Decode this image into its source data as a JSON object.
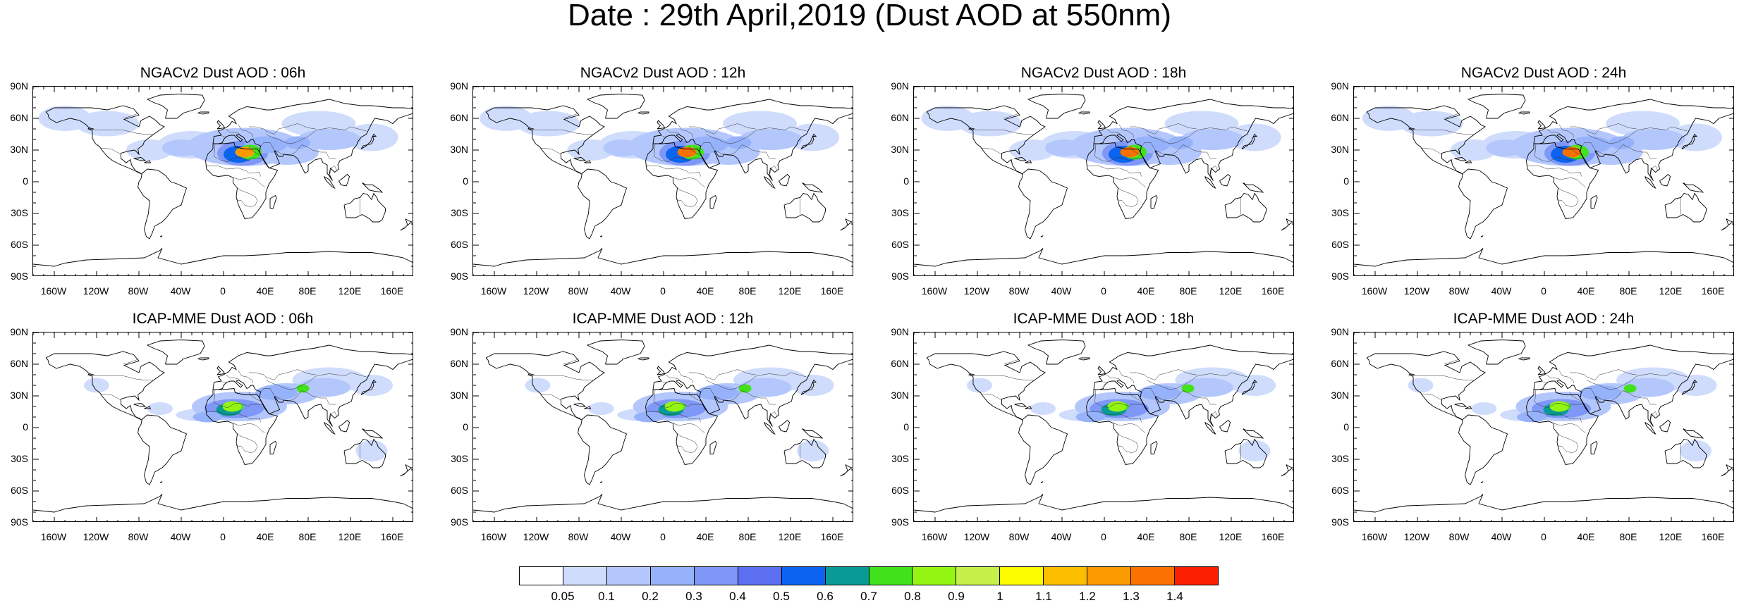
{
  "title": "Date : 29th April,2019 (Dust AOD at 550nm)",
  "lat_ticks": [
    "90N",
    "60N",
    "30N",
    "0",
    "30S",
    "60S",
    "90S"
  ],
  "lon_ticks": [
    "160W",
    "120W",
    "80W",
    "40W",
    "0",
    "40E",
    "80E",
    "120E",
    "160E"
  ],
  "panels": [
    {
      "title": "NGACv2 Dust AOD : 06h",
      "model": "NGACv2",
      "hour": 6,
      "core_aod": 1.15,
      "core_lon": 20
    },
    {
      "title": "NGACv2 Dust AOD : 12h",
      "model": "NGACv2",
      "hour": 12,
      "core_aod": 1.25,
      "core_lon": 22
    },
    {
      "title": "NGACv2 Dust AOD : 18h",
      "model": "NGACv2",
      "hour": 18,
      "core_aod": 1.3,
      "core_lon": 24
    },
    {
      "title": "NGACv2 Dust AOD : 24h",
      "model": "NGACv2",
      "hour": 24,
      "core_aod": 1.25,
      "core_lon": 26
    },
    {
      "title": "ICAP-MME Dust AOD : 06h",
      "model": "ICAP-MME",
      "hour": 6,
      "core_aod": 0.8,
      "core_lon": 8
    },
    {
      "title": "ICAP-MME Dust AOD : 12h",
      "model": "ICAP-MME",
      "hour": 12,
      "core_aod": 0.8,
      "core_lon": 10
    },
    {
      "title": "ICAP-MME Dust AOD : 18h",
      "model": "ICAP-MME",
      "hour": 18,
      "core_aod": 0.8,
      "core_lon": 12
    },
    {
      "title": "ICAP-MME Dust AOD : 24h",
      "model": "ICAP-MME",
      "hour": 24,
      "core_aod": 0.8,
      "core_lon": 14
    }
  ],
  "colorbar": {
    "labels": [
      "0.05",
      "0.1",
      "0.2",
      "0.3",
      "0.4",
      "0.5",
      "0.6",
      "0.7",
      "0.8",
      "0.9",
      "1",
      "1.1",
      "1.2",
      "1.3",
      "1.4"
    ],
    "colors": [
      "#ffffff",
      "#cfdcfc",
      "#b4c7fc",
      "#96b2fb",
      "#7f97f6",
      "#5b6ff0",
      "#0a64f0",
      "#0a9a96",
      "#41e21c",
      "#93f511",
      "#c5f048",
      "#fdfd00",
      "#fbbf00",
      "#fb9a00",
      "#fb7100",
      "#fb1e00"
    ]
  }
}
